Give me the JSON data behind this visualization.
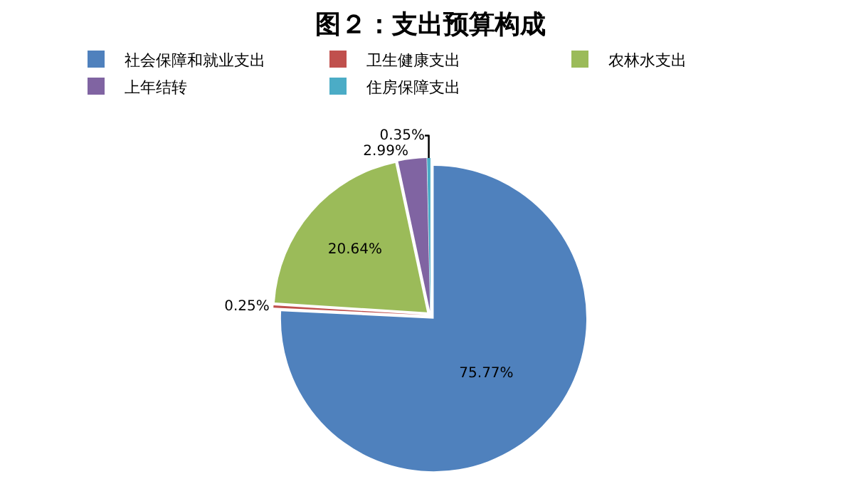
{
  "chart_data": {
    "type": "pie",
    "title": "图２：支出预算构成",
    "categories": [
      "社会保障和就业支出",
      "卫生健康支出",
      "农林水支出",
      "上年结转",
      "住房保障支出"
    ],
    "values": [
      75.77,
      0.25,
      20.64,
      2.99,
      0.35
    ],
    "colors": [
      "#4f81bd",
      "#c0504d",
      "#9bbb59",
      "#8064a2",
      "#4bacc6"
    ],
    "value_labels": [
      "75.77%",
      "0.25%",
      "20.64%",
      "2.99%",
      "0.35%"
    ],
    "legend": "top"
  }
}
